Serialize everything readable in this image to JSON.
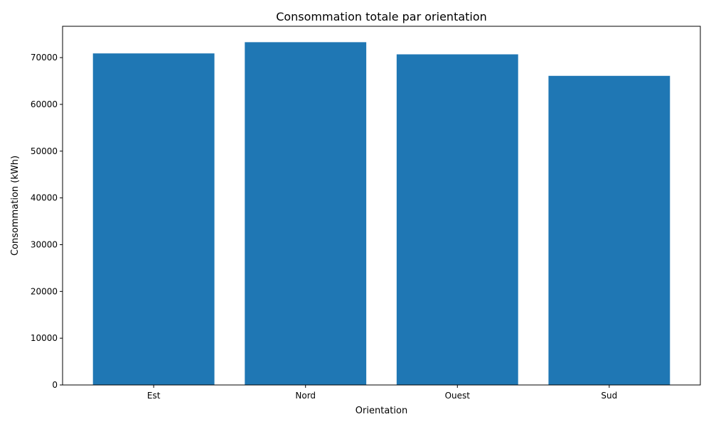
{
  "chart_data": {
    "type": "bar",
    "title": "Consommation totale par orientation",
    "xlabel": "Orientation",
    "ylabel": "Consommation (kWh)",
    "categories": [
      "Est",
      "Nord",
      "Ouest",
      "Sud"
    ],
    "values": [
      70900,
      73300,
      70700,
      66100
    ],
    "ylim": [
      0,
      76700
    ],
    "yticks": [
      0,
      10000,
      20000,
      30000,
      40000,
      50000,
      60000,
      70000
    ],
    "grid": false,
    "legend": "none",
    "bar_color": "#1f77b4"
  }
}
